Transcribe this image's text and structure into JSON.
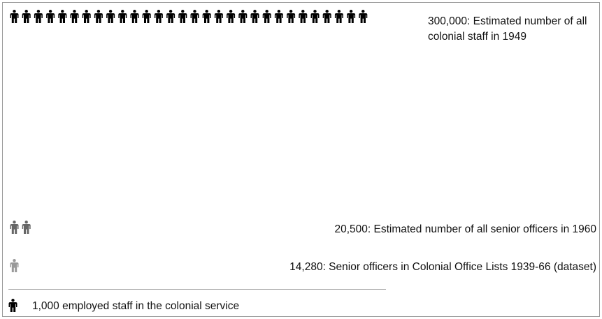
{
  "chart_data": {
    "type": "pictogram",
    "unit": {
      "value": 1000,
      "label": "1,000 employed staff in the colonial service"
    },
    "series": [
      {
        "value": 300000,
        "label": "300,000: Estimated number of all colonial staff in 1949",
        "color": "#000000"
      },
      {
        "value": 20500,
        "label": "20,500: Estimated number of all senior officers in 1960",
        "color": "#666666"
      },
      {
        "value": 14280,
        "label": "14,280: Senior officers in Colonial Office Lists 1939-66 (dataset)",
        "color": "#999999"
      }
    ]
  }
}
